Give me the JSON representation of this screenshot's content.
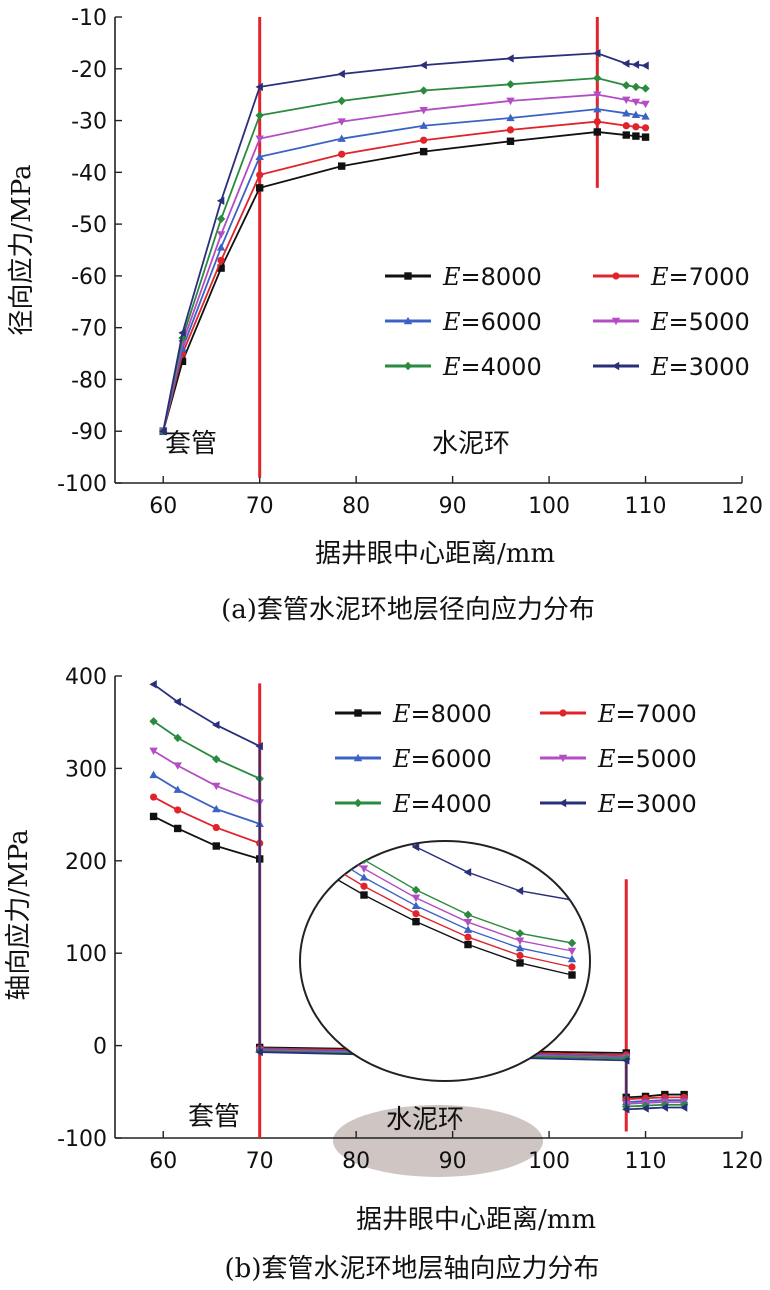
{
  "chart_data": [
    {
      "type": "line",
      "caption": "(a)套管水泥环地层径向应力分布",
      "xlabel": "据井眼中心距离/mm",
      "ylabel": "径向应力/MPa",
      "xlim": [
        55,
        120
      ],
      "ylim": [
        -100,
        -10
      ],
      "xticks": [
        60,
        70,
        80,
        90,
        100,
        110,
        120
      ],
      "yticks": [
        -10,
        -20,
        -30,
        -40,
        -50,
        -60,
        -70,
        -80,
        -90,
        -100
      ],
      "vlines": [
        {
          "x": 70,
          "y": [
            -99,
            -10
          ]
        },
        {
          "x": 105,
          "y": [
            -43,
            -10
          ]
        }
      ],
      "region_labels": [
        "套管",
        "水泥环"
      ],
      "legend_var": "E",
      "legend_position": "lower-right",
      "series": [
        {
          "name": "8000",
          "color": "#111111",
          "marker": "square",
          "x": [
            60,
            62,
            66,
            70,
            78.5,
            87,
            96,
            105,
            108,
            109,
            110
          ],
          "y": [
            -90,
            -76.5,
            -58.5,
            -43,
            -38.8,
            -36,
            -34,
            -32.2,
            -32.8,
            -33,
            -33.2
          ]
        },
        {
          "name": "7000",
          "color": "#e0242b",
          "marker": "circle",
          "x": [
            60,
            62,
            66,
            70,
            78.5,
            87,
            96,
            105,
            108,
            109,
            110
          ],
          "y": [
            -90,
            -75,
            -57,
            -40.5,
            -36.5,
            -33.8,
            -31.8,
            -30.2,
            -31,
            -31.2,
            -31.4
          ]
        },
        {
          "name": "6000",
          "color": "#3b63c4",
          "marker": "triangle-up",
          "x": [
            60,
            62,
            66,
            70,
            78.5,
            87,
            96,
            105,
            108,
            109,
            110
          ],
          "y": [
            -90,
            -74,
            -54.5,
            -37,
            -33.5,
            -31,
            -29.5,
            -27.8,
            -28.6,
            -28.9,
            -29.2
          ]
        },
        {
          "name": "5000",
          "color": "#b44dc4",
          "marker": "triangle-down",
          "x": [
            60,
            62,
            66,
            70,
            78.5,
            87,
            96,
            105,
            108,
            109,
            110
          ],
          "y": [
            -90,
            -73,
            -52,
            -33.5,
            -30.2,
            -28,
            -26.2,
            -25,
            -26,
            -26.4,
            -26.8
          ]
        },
        {
          "name": "4000",
          "color": "#2a8a3e",
          "marker": "diamond",
          "x": [
            60,
            62,
            66,
            70,
            78.5,
            87,
            96,
            105,
            108,
            109,
            110
          ],
          "y": [
            -90,
            -72,
            -49,
            -29,
            -26.2,
            -24.2,
            -23,
            -21.8,
            -23.2,
            -23.5,
            -23.8
          ]
        },
        {
          "name": "3000",
          "color": "#2a2f7a",
          "marker": "tri-left",
          "x": [
            60,
            62,
            66,
            70,
            78.5,
            87,
            96,
            105,
            108,
            109,
            110
          ],
          "y": [
            -90,
            -71,
            -45.5,
            -23.5,
            -21,
            -19.3,
            -18,
            -17,
            -19,
            -19.2,
            -19.4
          ]
        }
      ]
    },
    {
      "type": "line",
      "caption": "(b)套管水泥环地层轴向应力分布",
      "xlabel": "据井眼中心距离/mm",
      "ylabel": "轴向应力/MPa",
      "xlim": [
        55,
        120
      ],
      "ylim": [
        -100,
        400
      ],
      "xticks": [
        60,
        70,
        80,
        90,
        100,
        110,
        120
      ],
      "yticks": [
        400,
        300,
        200,
        100,
        0,
        -100
      ],
      "vlines": [
        {
          "x": 70,
          "y": [
            -100,
            392
          ]
        },
        {
          "x": 108,
          "y": [
            -93,
            180
          ]
        }
      ],
      "region_labels": [
        "套管",
        "水泥环"
      ],
      "legend_var": "E",
      "legend_position": "top-right",
      "series": [
        {
          "name": "8000",
          "color": "#111111",
          "marker": "square",
          "x": [
            59,
            61.5,
            65.5,
            70,
            70,
            108,
            108,
            110,
            112,
            114
          ],
          "y": [
            248,
            235,
            216,
            202,
            -2,
            -8,
            -56,
            -55,
            -53,
            -53
          ]
        },
        {
          "name": "7000",
          "color": "#e0242b",
          "marker": "circle",
          "x": [
            59,
            61.5,
            65.5,
            70,
            70,
            108,
            108,
            110,
            112,
            114
          ],
          "y": [
            269,
            255,
            236,
            219,
            -3,
            -10,
            -58,
            -57,
            -56,
            -56
          ]
        },
        {
          "name": "6000",
          "color": "#3b63c4",
          "marker": "triangle-up",
          "x": [
            59,
            61.5,
            65.5,
            70,
            70,
            108,
            108,
            110,
            112,
            114
          ],
          "y": [
            293,
            277,
            256,
            240,
            -4,
            -12,
            -61,
            -60,
            -59,
            -59
          ]
        },
        {
          "name": "5000",
          "color": "#b44dc4",
          "marker": "triangle-down",
          "x": [
            59,
            61.5,
            65.5,
            70,
            70,
            108,
            108,
            110,
            112,
            114
          ],
          "y": [
            319,
            303,
            281,
            263,
            -5,
            -13,
            -63,
            -62,
            -61,
            -61
          ]
        },
        {
          "name": "4000",
          "color": "#2a8a3e",
          "marker": "diamond",
          "x": [
            59,
            61.5,
            65.5,
            70,
            70,
            108,
            108,
            110,
            112,
            114
          ],
          "y": [
            351,
            333,
            310,
            289,
            -6,
            -14,
            -66,
            -65,
            -64,
            -64
          ]
        },
        {
          "name": "3000",
          "color": "#2a2f7a",
          "marker": "tri-left",
          "x": [
            59,
            61.5,
            65.5,
            70,
            70,
            108,
            108,
            110,
            112,
            114
          ],
          "y": [
            391,
            372,
            347,
            324,
            -7,
            -16,
            -69,
            -68,
            -67,
            -67
          ]
        }
      ]
    }
  ]
}
